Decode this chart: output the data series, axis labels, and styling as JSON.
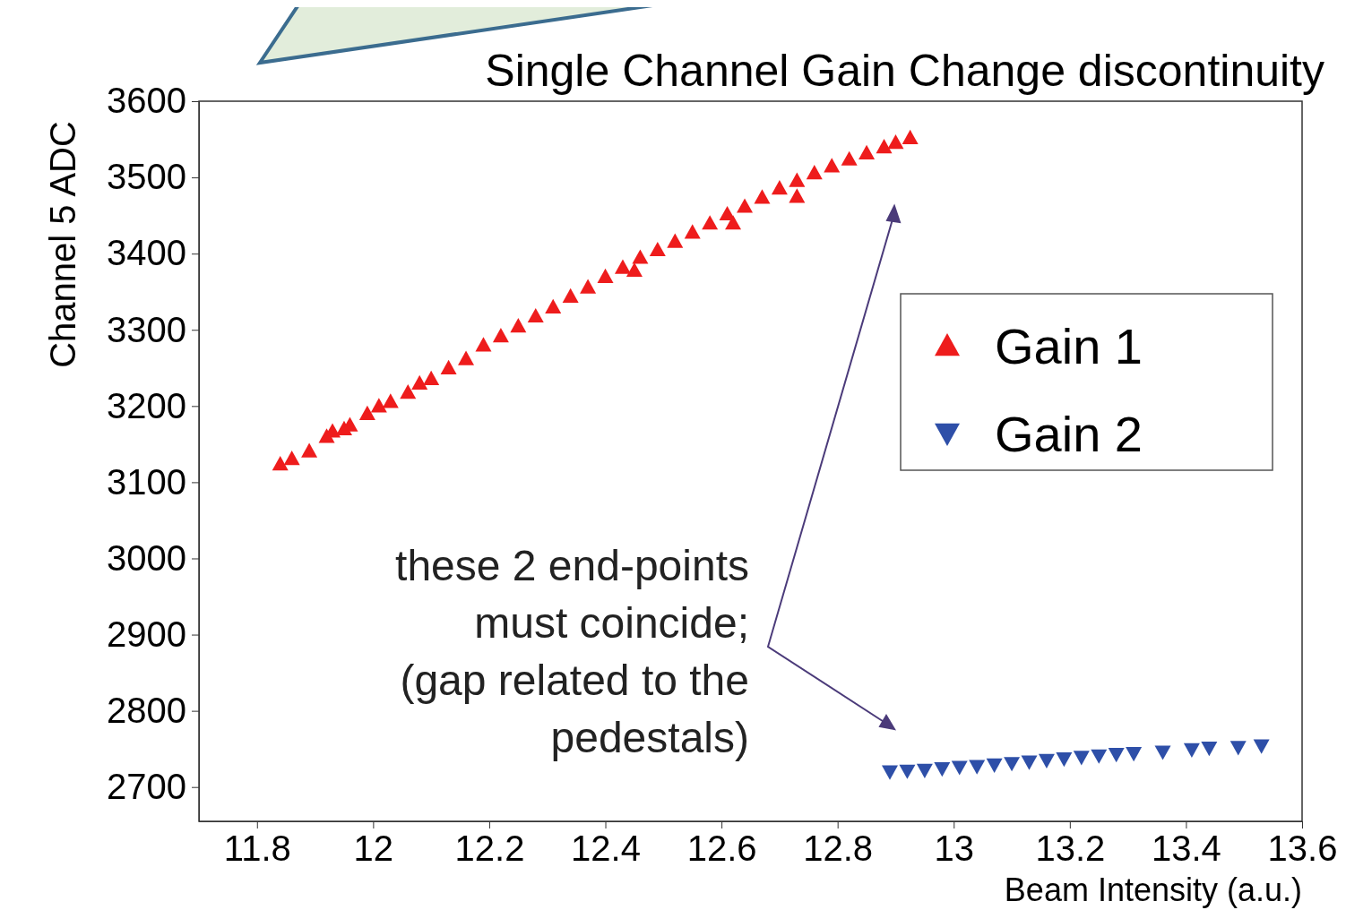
{
  "chart_data": {
    "type": "scatter",
    "title": "Single Channel Gain Change discontinuity",
    "xlabel": "Beam Intensity (a.u.)",
    "ylabel": "Channel 5 ADC",
    "annotations": [
      "these 2 end-points\nmust coincide;\n(gap related to the\npedestals)"
    ],
    "xlim": [
      11.7,
      13.6
    ],
    "xticks": [
      {
        "value": 11.8,
        "label": "11.8"
      },
      {
        "value": 12,
        "label": "12"
      },
      {
        "value": 12.2,
        "label": "12.2"
      },
      {
        "value": 12.4,
        "label": "12.4"
      },
      {
        "value": 12.6,
        "label": "12.6"
      },
      {
        "value": 12.8,
        "label": "12.8"
      },
      {
        "value": 13,
        "label": "13"
      },
      {
        "value": 13.2,
        "label": "13.2"
      },
      {
        "value": 13.4,
        "label": "13.4"
      },
      {
        "value": 13.6,
        "label": "13.6"
      }
    ],
    "ylim": [
      2655,
      3600
    ],
    "yticks": [
      2700,
      2800,
      2900,
      3000,
      3100,
      3200,
      3300,
      3400,
      3500,
      3600
    ],
    "grid": false,
    "legend": "right",
    "series": [
      {
        "name": "Gain 1",
        "color": "#ee1c1c",
        "marker": "triangle",
        "x": [
          11.84,
          11.86,
          11.89,
          11.92,
          11.93,
          11.95,
          11.96,
          11.99,
          12.01,
          12.03,
          12.06,
          12.08,
          12.1,
          12.13,
          12.16,
          12.19,
          12.22,
          12.25,
          12.28,
          12.31,
          12.34,
          12.37,
          12.4,
          12.43,
          12.46,
          12.49,
          12.52,
          12.55,
          12.58,
          12.61,
          12.64,
          12.67,
          12.7,
          12.73,
          12.76,
          12.79,
          12.82,
          12.85,
          12.88,
          12.9,
          12.925,
          12.73,
          12.62,
          12.45
        ],
        "values": [
          3124,
          3131,
          3141,
          3160,
          3167,
          3170,
          3175,
          3190,
          3200,
          3206,
          3218,
          3230,
          3236,
          3250,
          3262,
          3280,
          3292,
          3305,
          3318,
          3330,
          3344,
          3356,
          3370,
          3382,
          3395,
          3405,
          3416,
          3428,
          3440,
          3452,
          3462,
          3474,
          3486,
          3496,
          3506,
          3515,
          3524,
          3532,
          3540,
          3546,
          3552,
          3475,
          3440,
          3378
        ]
      },
      {
        "name": "Gain 2",
        "color": "#2e4fa8",
        "marker": "triangle-down",
        "x": [
          12.89,
          12.92,
          12.95,
          12.98,
          13.01,
          13.04,
          13.07,
          13.1,
          13.13,
          13.16,
          13.19,
          13.22,
          13.25,
          13.28,
          13.31,
          13.36,
          13.41,
          13.44,
          13.49,
          13.53
        ],
        "values": [
          2720,
          2721,
          2722,
          2724,
          2726,
          2727,
          2729,
          2731,
          2733,
          2735,
          2737,
          2739,
          2741,
          2743,
          2744,
          2746,
          2749,
          2751,
          2752,
          2754
        ]
      }
    ]
  }
}
